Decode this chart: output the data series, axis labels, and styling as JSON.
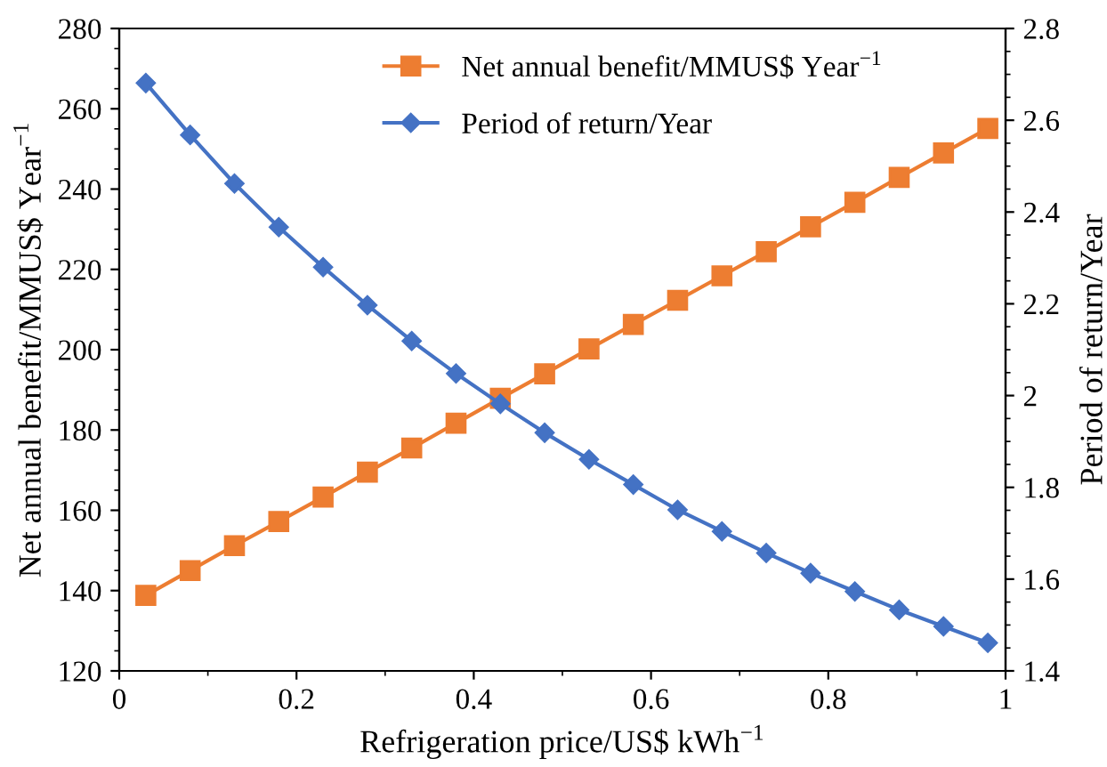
{
  "chart_data": {
    "type": "line",
    "xlabel": "Refrigeration price/US$ kWh$^{−1}$",
    "ylabel": "Net annual benefit/MMUS$ Year$^{−1}$",
    "y2label": "Period of return/Year",
    "x": [
      0.03,
      0.08,
      0.13,
      0.18,
      0.23,
      0.28,
      0.33,
      0.38,
      0.43,
      0.48,
      0.53,
      0.58,
      0.63,
      0.68,
      0.73,
      0.78,
      0.83,
      0.88,
      0.93,
      0.98
    ],
    "series": [
      {
        "name": "Net annual benefit/MMUS$ Year$^{−1}$",
        "color": "#ed7d31",
        "marker": "square",
        "values": [
          138.8,
          145.0,
          151.2,
          157.2,
          163.3,
          169.5,
          175.5,
          181.7,
          187.9,
          194.0,
          200.2,
          206.3,
          212.3,
          218.4,
          224.4,
          230.6,
          236.7,
          242.9,
          249.0,
          255.1
        ]
      },
      {
        "name": "Period of return/Year",
        "color": "#4472c4",
        "marker": "diamond",
        "axis": "y2",
        "values": [
          2.681,
          2.568,
          2.462,
          2.367,
          2.28,
          2.197,
          2.119,
          2.048,
          1.982,
          1.919,
          1.861,
          1.806,
          1.751,
          1.704,
          1.657,
          1.613,
          1.573,
          1.533,
          1.497,
          1.461
        ]
      }
    ],
    "xlim": [
      0,
      1
    ],
    "xticks": [
      0,
      0.2,
      0.4,
      0.6,
      0.8,
      1
    ],
    "ylim": [
      120,
      280
    ],
    "yticks": [
      120,
      140,
      160,
      180,
      200,
      220,
      240,
      260,
      280
    ],
    "y2lim": [
      1.4,
      2.8
    ],
    "y2ticks": [
      1.4,
      1.6,
      1.8,
      2,
      2.2,
      2.4,
      2.6,
      2.8
    ],
    "legend": "top",
    "grid": false,
    "line_style": "solid"
  }
}
